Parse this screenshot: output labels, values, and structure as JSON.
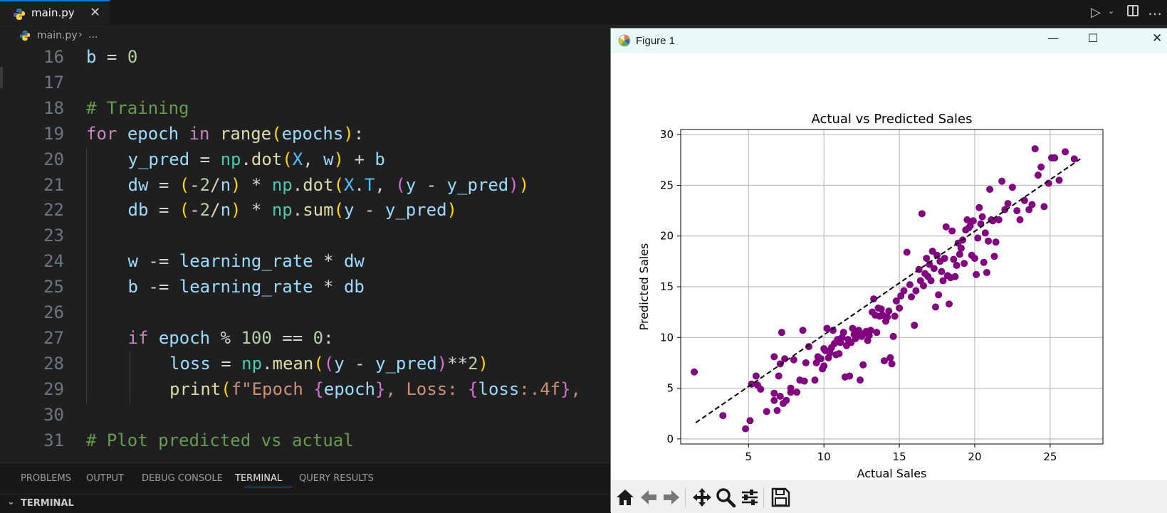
{
  "editor": {
    "tab": {
      "label": "main.py",
      "close": "✕"
    },
    "breadcrumb": {
      "file": "main.py",
      "sep": "›",
      "more": "..."
    },
    "lines": [
      {
        "num": "16",
        "tokens": [
          [
            "var",
            "b"
          ],
          [
            "op",
            " = "
          ],
          [
            "num",
            "0"
          ]
        ]
      },
      {
        "num": "17",
        "tokens": []
      },
      {
        "num": "18",
        "tokens": [
          [
            "com",
            "# Training"
          ]
        ]
      },
      {
        "num": "19",
        "tokens": [
          [
            "kw",
            "for"
          ],
          [
            "op",
            " "
          ],
          [
            "var",
            "epoch"
          ],
          [
            "op",
            " "
          ],
          [
            "kw",
            "in"
          ],
          [
            "op",
            " "
          ],
          [
            "fn",
            "range"
          ],
          [
            "par",
            "("
          ],
          [
            "var",
            "epochs"
          ],
          [
            "par",
            ")"
          ],
          [
            "op",
            ":"
          ]
        ]
      },
      {
        "num": "20",
        "indent": 1,
        "tokens": [
          [
            "var",
            "y_pred"
          ],
          [
            "op",
            " = "
          ],
          [
            "mod",
            "np"
          ],
          [
            "op",
            "."
          ],
          [
            "fn",
            "dot"
          ],
          [
            "par",
            "("
          ],
          [
            "blu",
            "X"
          ],
          [
            "op",
            ", "
          ],
          [
            "var",
            "w"
          ],
          [
            "par",
            ")"
          ],
          [
            "op",
            " + "
          ],
          [
            "var",
            "b"
          ]
        ]
      },
      {
        "num": "21",
        "indent": 1,
        "tokens": [
          [
            "var",
            "dw"
          ],
          [
            "op",
            " = "
          ],
          [
            "par",
            "("
          ],
          [
            "op",
            "-"
          ],
          [
            "num",
            "2"
          ],
          [
            "op",
            "/"
          ],
          [
            "var",
            "n"
          ],
          [
            "par",
            ")"
          ],
          [
            "op",
            " * "
          ],
          [
            "mod",
            "np"
          ],
          [
            "op",
            "."
          ],
          [
            "fn",
            "dot"
          ],
          [
            "par",
            "("
          ],
          [
            "blu",
            "X"
          ],
          [
            "op",
            "."
          ],
          [
            "blu",
            "T"
          ],
          [
            "op",
            ", "
          ],
          [
            "par2",
            "("
          ],
          [
            "var",
            "y"
          ],
          [
            "op",
            " - "
          ],
          [
            "var",
            "y_pred"
          ],
          [
            "par2",
            ")"
          ],
          [
            "par",
            ")"
          ]
        ]
      },
      {
        "num": "22",
        "indent": 1,
        "tokens": [
          [
            "var",
            "db"
          ],
          [
            "op",
            " = "
          ],
          [
            "par",
            "("
          ],
          [
            "op",
            "-"
          ],
          [
            "num",
            "2"
          ],
          [
            "op",
            "/"
          ],
          [
            "var",
            "n"
          ],
          [
            "par",
            ")"
          ],
          [
            "op",
            " * "
          ],
          [
            "mod",
            "np"
          ],
          [
            "op",
            "."
          ],
          [
            "fn",
            "sum"
          ],
          [
            "par",
            "("
          ],
          [
            "var",
            "y"
          ],
          [
            "op",
            " - "
          ],
          [
            "var",
            "y_pred"
          ],
          [
            "par",
            ")"
          ]
        ]
      },
      {
        "num": "23",
        "indent": 1,
        "tokens": []
      },
      {
        "num": "24",
        "indent": 1,
        "tokens": [
          [
            "var",
            "w"
          ],
          [
            "op",
            " -= "
          ],
          [
            "var",
            "learning_rate"
          ],
          [
            "op",
            " * "
          ],
          [
            "var",
            "dw"
          ]
        ]
      },
      {
        "num": "25",
        "indent": 1,
        "tokens": [
          [
            "var",
            "b"
          ],
          [
            "op",
            " -= "
          ],
          [
            "var",
            "learning_rate"
          ],
          [
            "op",
            " * "
          ],
          [
            "var",
            "db"
          ]
        ]
      },
      {
        "num": "26",
        "indent": 1,
        "tokens": []
      },
      {
        "num": "27",
        "indent": 1,
        "tokens": [
          [
            "kw",
            "if"
          ],
          [
            "op",
            " "
          ],
          [
            "var",
            "epoch"
          ],
          [
            "op",
            " % "
          ],
          [
            "num",
            "100"
          ],
          [
            "op",
            " == "
          ],
          [
            "num",
            "0"
          ],
          [
            "op",
            ":"
          ]
        ]
      },
      {
        "num": "28",
        "indent": 2,
        "tokens": [
          [
            "var",
            "loss"
          ],
          [
            "op",
            " = "
          ],
          [
            "mod",
            "np"
          ],
          [
            "op",
            "."
          ],
          [
            "fn",
            "mean"
          ],
          [
            "par",
            "("
          ],
          [
            "par2",
            "("
          ],
          [
            "var",
            "y"
          ],
          [
            "op",
            " - "
          ],
          [
            "var",
            "y_pred"
          ],
          [
            "par2",
            ")"
          ],
          [
            "op",
            "**"
          ],
          [
            "num",
            "2"
          ],
          [
            "par",
            ")"
          ]
        ]
      },
      {
        "num": "29",
        "indent": 2,
        "tokens": [
          [
            "fn",
            "print"
          ],
          [
            "par",
            "("
          ],
          [
            "str",
            "f\"Epoch "
          ],
          [
            "par2",
            "{"
          ],
          [
            "var",
            "epoch"
          ],
          [
            "par2",
            "}"
          ],
          [
            "str",
            ", Loss: "
          ],
          [
            "par2",
            "{"
          ],
          [
            "var",
            "loss"
          ],
          [
            "str",
            ":.4f"
          ],
          [
            "par2",
            "}"
          ],
          [
            "str",
            ","
          ]
        ]
      },
      {
        "num": "30",
        "tokens": []
      },
      {
        "num": "31",
        "tokens": [
          [
            "com",
            "# Plot predicted vs actual"
          ]
        ]
      }
    ]
  },
  "panel": {
    "tabs": [
      "PROBLEMS",
      "OUTPUT",
      "DEBUG CONSOLE",
      "TERMINAL",
      "QUERY RESULTS"
    ],
    "active_tab": "TERMINAL",
    "section": "TERMINAL"
  },
  "figure": {
    "title": "Figure 1",
    "controls": {
      "minimize": "—",
      "maximize": "☐",
      "close": "✕"
    },
    "toolbar_icons": [
      "home-icon",
      "back-arrow-icon",
      "forward-arrow-icon",
      "pan-icon",
      "zoom-icon",
      "configure-subplots-icon",
      "save-icon"
    ]
  },
  "colors": {
    "points": "#800080",
    "line": "#000000",
    "accent": "#0078d4"
  },
  "chart_data": {
    "type": "scatter",
    "title": "Actual vs Predicted Sales",
    "xlabel": "Actual Sales",
    "ylabel": "Predicted Sales",
    "xlim": [
      0.5,
      28.5
    ],
    "ylim": [
      -0.5,
      30.5
    ],
    "xticks": [
      5,
      10,
      15,
      20,
      25
    ],
    "yticks": [
      0,
      5,
      10,
      15,
      20,
      25,
      30
    ],
    "grid": true,
    "reference_line": {
      "style": "dashed",
      "x": [
        1.5,
        27.0
      ],
      "y": [
        1.6,
        27.6
      ]
    },
    "points": [
      [
        1.4,
        6.6
      ],
      [
        3.3,
        2.3
      ],
      [
        4.8,
        1.0
      ],
      [
        5.1,
        1.8
      ],
      [
        5.2,
        5.4
      ],
      [
        5.5,
        6.2
      ],
      [
        5.6,
        5.3
      ],
      [
        5.8,
        4.9
      ],
      [
        6.2,
        2.7
      ],
      [
        6.7,
        8.1
      ],
      [
        6.7,
        4.5
      ],
      [
        6.7,
        3.8
      ],
      [
        6.9,
        2.8
      ],
      [
        7.0,
        6.2
      ],
      [
        7.1,
        7.4
      ],
      [
        7.1,
        4.2
      ],
      [
        7.2,
        10.5
      ],
      [
        7.3,
        3.5
      ],
      [
        7.4,
        7.9
      ],
      [
        7.5,
        3.8
      ],
      [
        7.8,
        5.0
      ],
      [
        7.8,
        4.6
      ],
      [
        8.0,
        7.8
      ],
      [
        8.2,
        4.6
      ],
      [
        8.4,
        5.8
      ],
      [
        8.6,
        10.7
      ],
      [
        8.7,
        5.7
      ],
      [
        8.8,
        7.5
      ],
      [
        9.0,
        9.1
      ],
      [
        9.4,
        5.8
      ],
      [
        9.5,
        7.5
      ],
      [
        9.6,
        8.1
      ],
      [
        9.8,
        7.9
      ],
      [
        9.9,
        6.9
      ],
      [
        10.0,
        7.2
      ],
      [
        10.0,
        8.9
      ],
      [
        10.1,
        8.7
      ],
      [
        10.2,
        10.9
      ],
      [
        10.3,
        8.0
      ],
      [
        10.4,
        8.5
      ],
      [
        10.5,
        9.0
      ],
      [
        10.6,
        10.7
      ],
      [
        10.7,
        9.4
      ],
      [
        10.8,
        8.3
      ],
      [
        10.9,
        9.8
      ],
      [
        11.0,
        8.4
      ],
      [
        11.1,
        9.5
      ],
      [
        11.2,
        10.0
      ],
      [
        11.3,
        10.5
      ],
      [
        11.4,
        6.1
      ],
      [
        11.5,
        9.2
      ],
      [
        11.6,
        9.8
      ],
      [
        11.7,
        6.2
      ],
      [
        11.8,
        9.5
      ],
      [
        11.9,
        10.9
      ],
      [
        12.0,
        10.3
      ],
      [
        12.1,
        9.9
      ],
      [
        12.2,
        10.2
      ],
      [
        12.3,
        10.7
      ],
      [
        12.4,
        5.8
      ],
      [
        12.5,
        10.1
      ],
      [
        12.6,
        7.3
      ],
      [
        12.7,
        10.4
      ],
      [
        12.8,
        10.6
      ],
      [
        12.9,
        9.7
      ],
      [
        13.0,
        10.2
      ],
      [
        13.1,
        10.7
      ],
      [
        13.2,
        12.5
      ],
      [
        13.3,
        13.8
      ],
      [
        13.4,
        12.2
      ],
      [
        13.5,
        10.5
      ],
      [
        13.6,
        12.9
      ],
      [
        13.7,
        12.1
      ],
      [
        13.8,
        12.8
      ],
      [
        13.9,
        12.2
      ],
      [
        14.0,
        7.7
      ],
      [
        14.1,
        11.6
      ],
      [
        14.2,
        12.0
      ],
      [
        14.3,
        12.6
      ],
      [
        14.4,
        8.0
      ],
      [
        14.5,
        7.4
      ],
      [
        14.6,
        10.1
      ],
      [
        14.7,
        12.1
      ],
      [
        14.8,
        13.6
      ],
      [
        15.0,
        12.9
      ],
      [
        15.1,
        14.1
      ],
      [
        15.3,
        14.6
      ],
      [
        15.5,
        18.4
      ],
      [
        15.7,
        15.2
      ],
      [
        15.8,
        14.0
      ],
      [
        16.0,
        11.2
      ],
      [
        16.1,
        14.6
      ],
      [
        16.3,
        16.7
      ],
      [
        16.4,
        15.6
      ],
      [
        16.5,
        22.2
      ],
      [
        16.6,
        15.1
      ],
      [
        16.7,
        16.3
      ],
      [
        16.8,
        17.8
      ],
      [
        16.9,
        16.0
      ],
      [
        17.0,
        17.2
      ],
      [
        17.1,
        15.6
      ],
      [
        17.2,
        18.5
      ],
      [
        17.3,
        16.8
      ],
      [
        17.4,
        13.0
      ],
      [
        17.5,
        18.1
      ],
      [
        17.6,
        14.2
      ],
      [
        17.7,
        17.5
      ],
      [
        17.8,
        16.5
      ],
      [
        17.9,
        15.6
      ],
      [
        18.0,
        17.8
      ],
      [
        18.1,
        20.9
      ],
      [
        18.2,
        16.1
      ],
      [
        18.3,
        13.3
      ],
      [
        18.4,
        15.9
      ],
      [
        18.5,
        20.5
      ],
      [
        18.6,
        17.7
      ],
      [
        18.7,
        16.0
      ],
      [
        18.8,
        17.1
      ],
      [
        18.9,
        19.3
      ],
      [
        19.0,
        18.2
      ],
      [
        19.1,
        18.8
      ],
      [
        19.2,
        19.6
      ],
      [
        19.3,
        17.3
      ],
      [
        19.4,
        20.6
      ],
      [
        19.5,
        21.6
      ],
      [
        19.6,
        20.8
      ],
      [
        19.7,
        21.0
      ],
      [
        19.8,
        18.1
      ],
      [
        19.9,
        21.5
      ],
      [
        20.0,
        17.8
      ],
      [
        20.1,
        16.2
      ],
      [
        20.2,
        19.8
      ],
      [
        20.3,
        22.8
      ],
      [
        20.4,
        21.2
      ],
      [
        20.5,
        21.9
      ],
      [
        20.6,
        17.4
      ],
      [
        20.7,
        20.3
      ],
      [
        20.8,
        16.4
      ],
      [
        20.9,
        19.5
      ],
      [
        21.0,
        24.6
      ],
      [
        21.1,
        21.6
      ],
      [
        21.2,
        21.5
      ],
      [
        21.3,
        18.0
      ],
      [
        21.4,
        19.4
      ],
      [
        21.6,
        21.6
      ],
      [
        21.8,
        25.4
      ],
      [
        22.0,
        22.6
      ],
      [
        22.2,
        23.2
      ],
      [
        22.5,
        24.8
      ],
      [
        22.8,
        22.5
      ],
      [
        23.0,
        21.6
      ],
      [
        23.3,
        23.5
      ],
      [
        23.6,
        22.6
      ],
      [
        23.8,
        23.1
      ],
      [
        24.0,
        28.6
      ],
      [
        24.2,
        26.0
      ],
      [
        24.4,
        26.8
      ],
      [
        24.6,
        22.9
      ],
      [
        24.9,
        25.2
      ],
      [
        25.1,
        27.7
      ],
      [
        25.3,
        27.7
      ],
      [
        25.6,
        25.5
      ],
      [
        26.0,
        28.3
      ],
      [
        26.6,
        27.6
      ]
    ]
  }
}
